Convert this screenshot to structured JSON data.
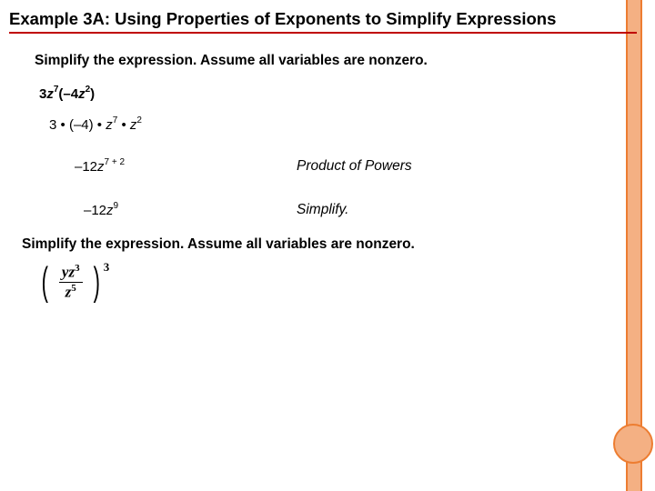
{
  "title": "Example 3A: Using Properties of Exponents to Simplify Expressions",
  "instruction1": "Simplify the expression. Assume all variables are nonzero.",
  "expr1_html": "3<i>z</i><sup>7</sup>(–4<i>z</i><sup>2</sup>)",
  "expr2_html": "3 <span class='dot'>&bull;</span> (–4) <span class='dot'>&bull;</span> <i>z</i><sup>7</sup> <span class='dot'>&bull;</span> <i>z</i><sup>2</sup>",
  "expr3_html": "–12<i>z</i><sup>7 + 2</sup>",
  "reason1": "Product of Powers",
  "expr4_html": "–12<i>z</i><sup>9</sup>",
  "reason2": "Simplify.",
  "instruction2": "Simplify the expression. Assume all variables are nonzero.",
  "frac_num_html": "yz<sup class='sm'>3</sup>",
  "frac_den_html": "z<sup class='sm'>5</sup>",
  "outer_exp": "3",
  "colors": {
    "accent_fill": "#f4b083",
    "accent_border": "#ed7d31",
    "title_underline": "#c00000"
  }
}
